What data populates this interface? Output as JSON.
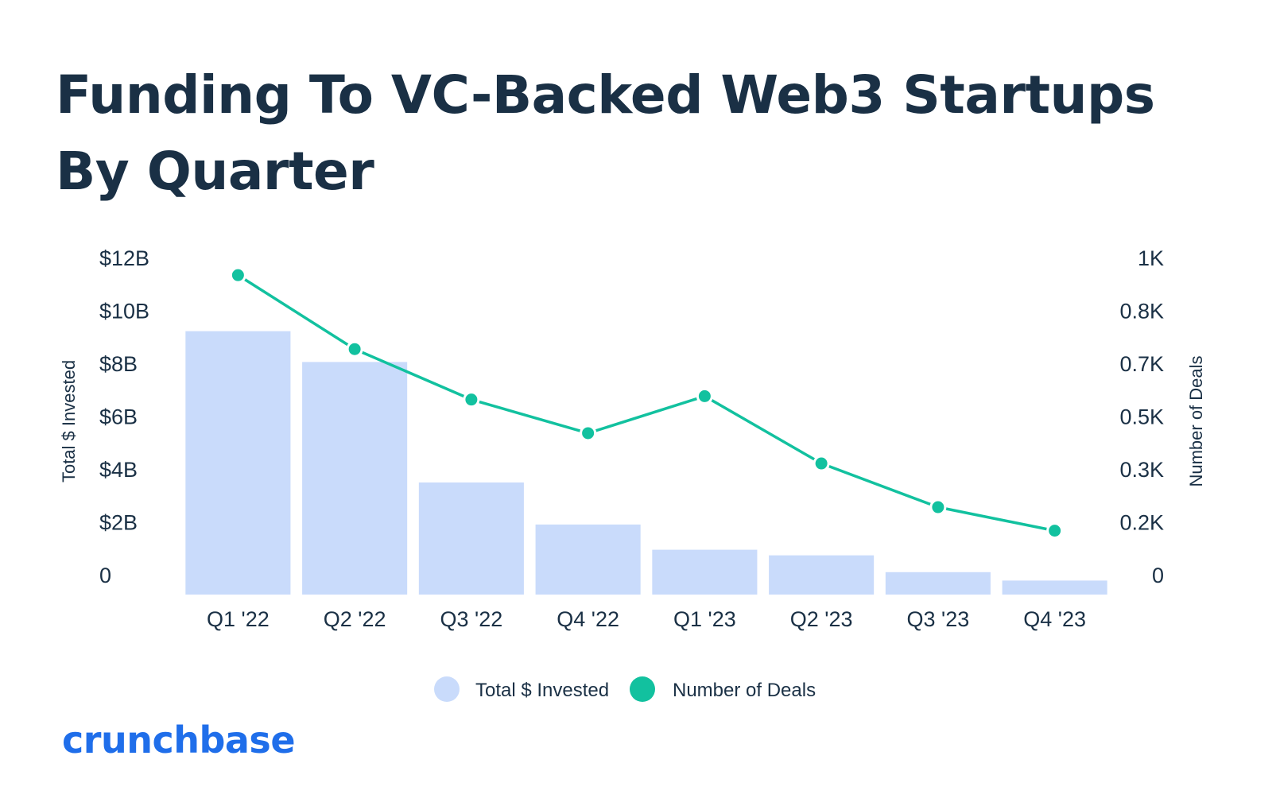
{
  "title": "Funding To VC-Backed Web3 Startups By Quarter",
  "brand": "crunchbase",
  "colors": {
    "bar": "#c9dbfb",
    "line": "#12c19f",
    "text": "#1a3045",
    "brand": "#1f6eea"
  },
  "chart_data": {
    "type": "bar",
    "categories": [
      "Q1 '22",
      "Q2 '22",
      "Q3 '22",
      "Q4 '22",
      "Q1 '23",
      "Q2 '23",
      "Q3 '23",
      "Q4 '23"
    ],
    "series": [
      {
        "name": "Total $ Invested",
        "type": "bar",
        "axis": "left",
        "values": [
          9.4,
          8.3,
          4.0,
          2.5,
          1.6,
          1.4,
          0.8,
          0.5
        ]
      },
      {
        "name": "Number of Deals",
        "type": "line",
        "axis": "right",
        "values": [
          0.95,
          0.73,
          0.58,
          0.48,
          0.59,
          0.39,
          0.26,
          0.19
        ]
      }
    ],
    "left_axis": {
      "label": "Total $ Invested",
      "ticks": [
        {
          "v": 0,
          "label": "0"
        },
        {
          "v": 2,
          "label": "$2B"
        },
        {
          "v": 4,
          "label": "$4B"
        },
        {
          "v": 6,
          "label": "$6B"
        },
        {
          "v": 8,
          "label": "$8B"
        },
        {
          "v": 10,
          "label": "$10B"
        },
        {
          "v": 12,
          "label": "$12B"
        }
      ],
      "range": [
        0,
        12
      ]
    },
    "right_axis": {
      "label": "Number of Deals",
      "ticks": [
        "0",
        "0.2K",
        "0.3K",
        "0.5K",
        "0.7K",
        "0.8K",
        "1K"
      ],
      "range": [
        0,
        1
      ]
    },
    "legend": {
      "position": "bottom",
      "items": [
        "Total $ Invested",
        "Number of Deals"
      ]
    },
    "grid": false
  }
}
